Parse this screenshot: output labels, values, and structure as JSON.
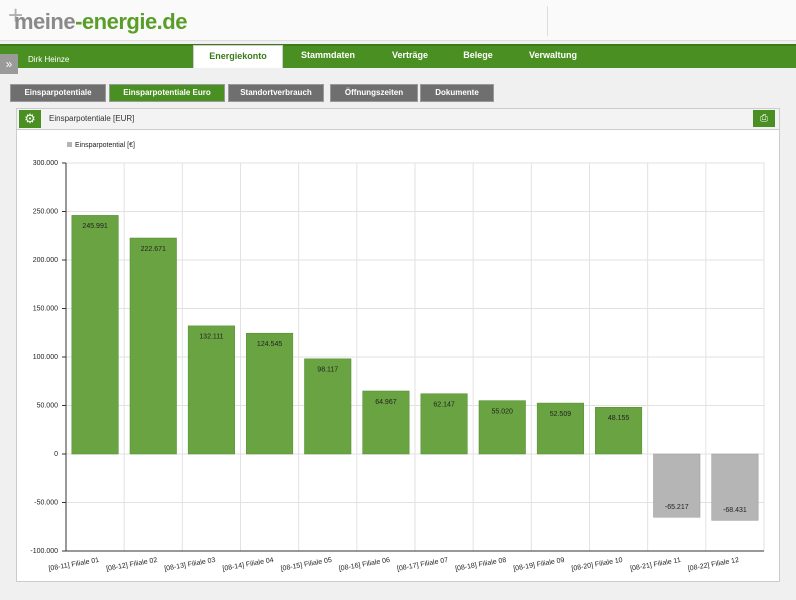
{
  "header": {
    "logo_main": "meine",
    "logo_domain": "-energie.de"
  },
  "user": "Dirk Heinze",
  "nav": [
    "Energiekonto",
    "Stammdaten",
    "Verträge",
    "Belege",
    "Verwaltung"
  ],
  "subtabs": [
    "Einsparpotentiale",
    "Einsparpotentiale Euro",
    "Standortverbrauch",
    "Öffnungszeiten",
    "Dokumente"
  ],
  "panel": {
    "title": "Einsparpotentiale [EUR]"
  },
  "chart_data": {
    "type": "bar",
    "categories": [
      "[08-11] Filiale 01",
      "[08-12] Filiale 02",
      "[08-13] Filiale 03",
      "[08-14] Filiale 04",
      "[08-15] Filiale 05",
      "[08-16] Filiale 06",
      "[08-17] Filiale 07",
      "[08-18] Filiale 08",
      "[08-19] Filiale 09",
      "[08-20] Filiale 10",
      "[08-21] Filiale 11",
      "[08-22] Filiale 12"
    ],
    "series": [
      {
        "name": "Einsparpotential [€]",
        "color": "#6aa442",
        "negative_color": "#b5b5b5",
        "legend_color": "#b5b5b5",
        "values": [
          245991,
          222671,
          132111,
          124545,
          98117,
          64967,
          62147,
          55020,
          52509,
          48155,
          -65217,
          -68431
        ],
        "value_labels": [
          "245.991",
          "222.671",
          "132.111",
          "124.545",
          "98.117",
          "64.967",
          "62.147",
          "55.020",
          "52.509",
          "48.155",
          "-65.217",
          "-68.431"
        ]
      }
    ],
    "ylim": [
      -100000,
      300000
    ],
    "yticks": [
      {
        "value": -100000,
        "label": "-100.000"
      },
      {
        "value": -50000,
        "label": "-50.000"
      },
      {
        "value": 0,
        "label": "0"
      },
      {
        "value": 50000,
        "label": "50.000"
      },
      {
        "value": 100000,
        "label": "100.000"
      },
      {
        "value": 150000,
        "label": "150.000"
      },
      {
        "value": 200000,
        "label": "200.000"
      },
      {
        "value": 250000,
        "label": "250.000"
      },
      {
        "value": 300000,
        "label": "300.000"
      }
    ],
    "grid": true
  }
}
